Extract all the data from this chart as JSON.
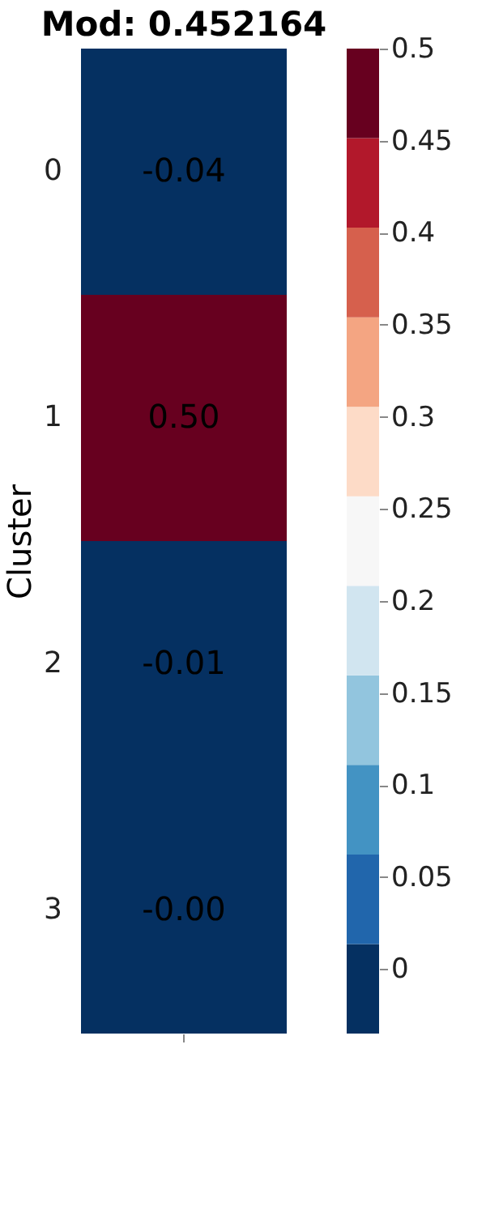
{
  "chart_data": {
    "type": "heatmap",
    "title": "Mod: 0.452164",
    "ylabel": "Cluster",
    "categories": [
      null
    ],
    "y_categories": [
      "0",
      "1",
      "2",
      "3"
    ],
    "cells": [
      [
        -0.04
      ],
      [
        0.5
      ],
      [
        -0.01
      ],
      [
        -0.0
      ]
    ],
    "cell_labels": [
      [
        "-0.04"
      ],
      [
        "0.50"
      ],
      [
        "-0.01"
      ],
      [
        "-0.00"
      ]
    ],
    "clim": [
      -0.035,
      0.5
    ],
    "cticks": [
      0,
      0.05,
      0.1,
      0.15,
      0.2,
      0.25,
      0.3,
      0.35,
      0.4,
      0.45,
      0.5
    ],
    "tick_labels": "y"
  }
}
